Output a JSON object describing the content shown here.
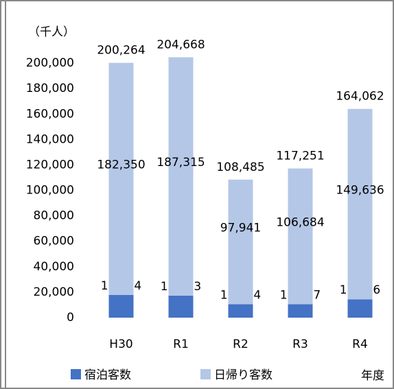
{
  "chart_data": {
    "type": "stacked-bar",
    "y_label": "（千人）",
    "x_label": "年度",
    "categories": [
      "H30",
      "R1",
      "R2",
      "R3",
      "R4"
    ],
    "series": [
      {
        "name": "宿泊客数",
        "color": "#4472c4",
        "values": [
          17914,
          17353,
          10544,
          10567,
          14426
        ],
        "value_labels": [
          "17,914",
          "17,353",
          "10,544",
          "10,567",
          "14,426"
        ]
      },
      {
        "name": "日帰り客数",
        "color": "#b4c7e7",
        "values": [
          182350,
          187315,
          97941,
          106684,
          149636
        ],
        "value_labels": [
          "182,350",
          "187,315",
          "97,941",
          "106,684",
          "149,636"
        ]
      }
    ],
    "totals": [
      200264,
      204668,
      108485,
      117251,
      164062
    ],
    "total_labels": [
      "200,264",
      "204,668",
      "108,485",
      "117,251",
      "164,062"
    ],
    "ylim": [
      0,
      220000
    ],
    "yticks": [
      0,
      {
        "value": 20000,
        "label": "20,000"
      },
      {
        "value": 40000,
        "label": "40,000"
      },
      {
        "value": 60000,
        "label": "60,000"
      },
      {
        "value": 80000,
        "label": "80,000"
      },
      {
        "value": 100000,
        "label": "100,000"
      },
      {
        "value": 120000,
        "label": "120,000"
      },
      {
        "value": 140000,
        "label": "140,000"
      },
      {
        "value": 160000,
        "label": "160,000"
      },
      {
        "value": 180000,
        "label": "180,000"
      },
      {
        "value": 200000,
        "label": "200,000"
      }
    ],
    "grid": false
  }
}
